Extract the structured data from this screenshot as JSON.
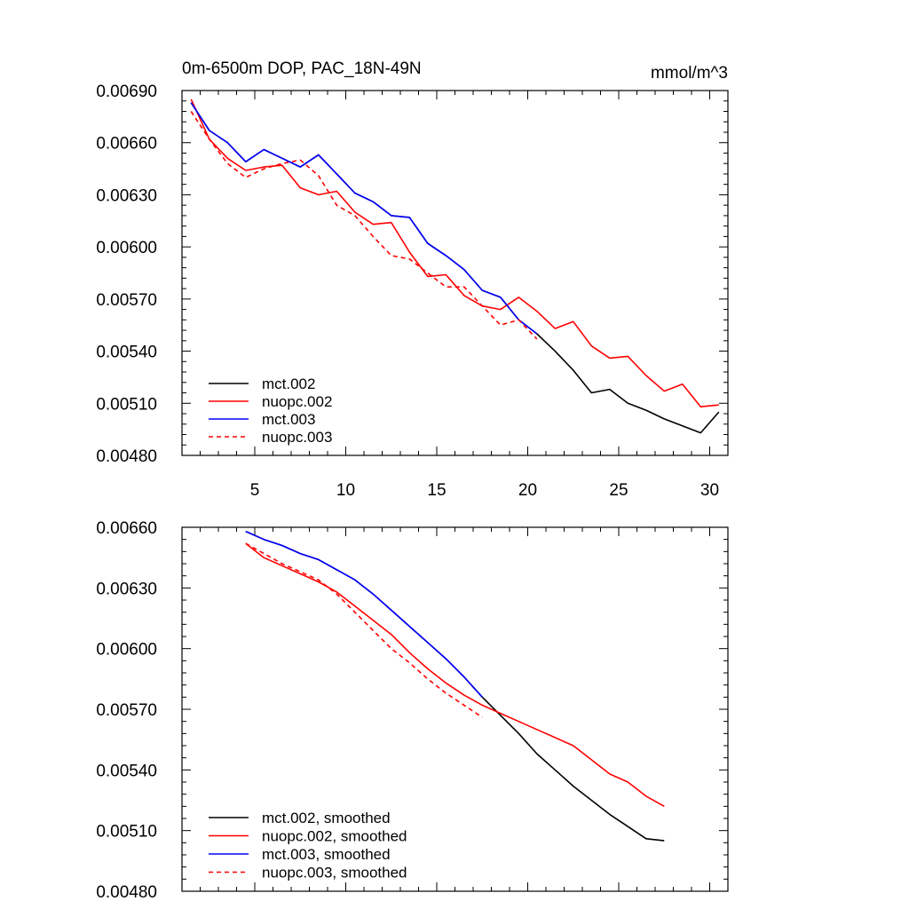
{
  "chart_data": [
    {
      "type": "line",
      "title": "0m-6500m DOP, PAC_18N-49N",
      "title_right": "mmol/m^3",
      "xlim": [
        1,
        31
      ],
      "ylim": [
        0.0048,
        0.0069
      ],
      "xticks": [
        5,
        10,
        15,
        20,
        25,
        30
      ],
      "xtick_labels": [
        "5",
        "10",
        "15",
        "20",
        "25",
        "30"
      ],
      "yticks": [
        0.0048,
        0.0051,
        0.0054,
        0.0057,
        0.006,
        0.0063,
        0.0066,
        0.0069
      ],
      "ytick_labels": [
        "0.00480",
        "0.00510",
        "0.00540",
        "0.00570",
        "0.00600",
        "0.00630",
        "0.00660",
        "0.00690"
      ],
      "legend_position": "bottom-left",
      "series": [
        {
          "name": "mct.002",
          "color": "#000000",
          "dash": "solid",
          "x": [
            1.5,
            2.5,
            3.5,
            4.5,
            5.5,
            6.5,
            7.5,
            8.5,
            9.5,
            10.5,
            11.5,
            12.5,
            13.5,
            14.5,
            15.5,
            16.5,
            17.5,
            18.5,
            19.5,
            20.5,
            21.5,
            22.5,
            23.5,
            24.5,
            25.5,
            26.5,
            27.5,
            28.5,
            29.5,
            30.5
          ],
          "values": [
            0.00683,
            0.00667,
            0.0066,
            0.00649,
            0.00656,
            0.00651,
            0.00646,
            0.00653,
            0.00642,
            0.00631,
            0.00626,
            0.00618,
            0.00617,
            0.00602,
            0.00595,
            0.00587,
            0.00575,
            0.00571,
            0.00558,
            0.0055,
            0.0054,
            0.00529,
            0.00516,
            0.00518,
            0.0051,
            0.00506,
            0.00501,
            0.00497,
            0.00493,
            0.00505
          ]
        },
        {
          "name": "nuopc.002",
          "color": "#ff0000",
          "dash": "solid",
          "x": [
            1.5,
            2.5,
            3.5,
            4.5,
            5.5,
            6.5,
            7.5,
            8.5,
            9.5,
            10.5,
            11.5,
            12.5,
            13.5,
            14.5,
            15.5,
            16.5,
            17.5,
            18.5,
            19.5,
            20.5,
            21.5,
            22.5,
            23.5,
            24.5,
            25.5,
            26.5,
            27.5,
            28.5,
            29.5,
            30.5
          ],
          "values": [
            0.00685,
            0.00662,
            0.00651,
            0.00644,
            0.00646,
            0.00647,
            0.00634,
            0.0063,
            0.00632,
            0.0062,
            0.00613,
            0.00614,
            0.00597,
            0.00583,
            0.00584,
            0.00572,
            0.00566,
            0.00564,
            0.00571,
            0.00563,
            0.00553,
            0.00557,
            0.00543,
            0.00536,
            0.00537,
            0.00526,
            0.00517,
            0.00521,
            0.00508,
            0.00509
          ]
        },
        {
          "name": "mct.003",
          "color": "#0000ff",
          "dash": "solid",
          "x": [
            1.5,
            2.5,
            3.5,
            4.5,
            5.5,
            6.5,
            7.5,
            8.5,
            9.5,
            10.5,
            11.5,
            12.5,
            13.5,
            14.5,
            15.5,
            16.5,
            17.5,
            18.5,
            19.5,
            20.5
          ],
          "values": [
            0.00683,
            0.00667,
            0.0066,
            0.00649,
            0.00656,
            0.00651,
            0.00646,
            0.00653,
            0.00642,
            0.00631,
            0.00626,
            0.00618,
            0.00617,
            0.00602,
            0.00595,
            0.00587,
            0.00575,
            0.00571,
            0.00558,
            0.0055
          ]
        },
        {
          "name": "nuopc.003",
          "color": "#ff0000",
          "dash": "dashed",
          "x": [
            1.5,
            2.5,
            3.5,
            4.5,
            5.5,
            6.5,
            7.5,
            8.5,
            9.5,
            10.5,
            11.5,
            12.5,
            13.5,
            14.5,
            15.5,
            16.5,
            17.5,
            18.5,
            19.5,
            20.5
          ],
          "values": [
            0.00678,
            0.00662,
            0.00648,
            0.0064,
            0.00645,
            0.00648,
            0.0065,
            0.00641,
            0.00624,
            0.00618,
            0.00606,
            0.00595,
            0.00593,
            0.00585,
            0.00577,
            0.00577,
            0.00566,
            0.00555,
            0.00558,
            0.00547
          ]
        }
      ]
    },
    {
      "type": "line",
      "xlim": [
        1,
        31
      ],
      "ylim": [
        0.0048,
        0.0066
      ],
      "xticks": [
        5,
        10,
        15,
        20,
        25,
        30
      ],
      "yticks": [
        0.0048,
        0.0051,
        0.0054,
        0.0057,
        0.006,
        0.0063,
        0.0066
      ],
      "ytick_labels": [
        "0.00480",
        "0.00510",
        "0.00540",
        "0.00570",
        "0.00600",
        "0.00630",
        "0.00660"
      ],
      "legend_position": "bottom-left",
      "series": [
        {
          "name": "mct.002, smoothed",
          "color": "#000000",
          "dash": "solid",
          "x": [
            4.5,
            5.5,
            6.5,
            7.5,
            8.5,
            9.5,
            10.5,
            11.5,
            12.5,
            13.5,
            14.5,
            15.5,
            16.5,
            17.5,
            18.5,
            19.5,
            20.5,
            21.5,
            22.5,
            23.5,
            24.5,
            25.5,
            26.5,
            27.5
          ],
          "values": [
            0.00658,
            0.00654,
            0.00651,
            0.00647,
            0.00644,
            0.00639,
            0.00634,
            0.00627,
            0.00619,
            0.00611,
            0.00603,
            0.00595,
            0.00586,
            0.00576,
            0.00567,
            0.00558,
            0.00548,
            0.0054,
            0.00532,
            0.00525,
            0.00518,
            0.00512,
            0.00506,
            0.00505
          ]
        },
        {
          "name": "nuopc.002, smoothed",
          "color": "#ff0000",
          "dash": "solid",
          "x": [
            4.5,
            5.5,
            6.5,
            7.5,
            8.5,
            9.5,
            10.5,
            11.5,
            12.5,
            13.5,
            14.5,
            15.5,
            16.5,
            17.5,
            18.5,
            19.5,
            20.5,
            21.5,
            22.5,
            23.5,
            24.5,
            25.5,
            26.5,
            27.5
          ],
          "values": [
            0.00652,
            0.00645,
            0.00641,
            0.00637,
            0.00633,
            0.00628,
            0.00621,
            0.00614,
            0.00607,
            0.00598,
            0.0059,
            0.00583,
            0.00577,
            0.00572,
            0.00568,
            0.00564,
            0.0056,
            0.00556,
            0.00552,
            0.00545,
            0.00538,
            0.00534,
            0.00527,
            0.00522
          ]
        },
        {
          "name": "mct.003, smoothed",
          "color": "#0000ff",
          "dash": "solid",
          "x": [
            4.5,
            5.5,
            6.5,
            7.5,
            8.5,
            9.5,
            10.5,
            11.5,
            12.5,
            13.5,
            14.5,
            15.5,
            16.5,
            17.5
          ],
          "values": [
            0.00658,
            0.00654,
            0.00651,
            0.00647,
            0.00644,
            0.00639,
            0.00634,
            0.00627,
            0.00619,
            0.00611,
            0.00603,
            0.00595,
            0.00586,
            0.00576
          ]
        },
        {
          "name": "nuopc.003, smoothed",
          "color": "#ff0000",
          "dash": "dashed",
          "x": [
            4.5,
            5.5,
            6.5,
            7.5,
            8.5,
            9.5,
            10.5,
            11.5,
            12.5,
            13.5,
            14.5,
            15.5,
            16.5,
            17.5
          ],
          "values": [
            0.00652,
            0.00647,
            0.00642,
            0.00638,
            0.00634,
            0.00627,
            0.00618,
            0.00609,
            0.006,
            0.00593,
            0.00585,
            0.00578,
            0.00572,
            0.00566
          ]
        }
      ]
    }
  ]
}
